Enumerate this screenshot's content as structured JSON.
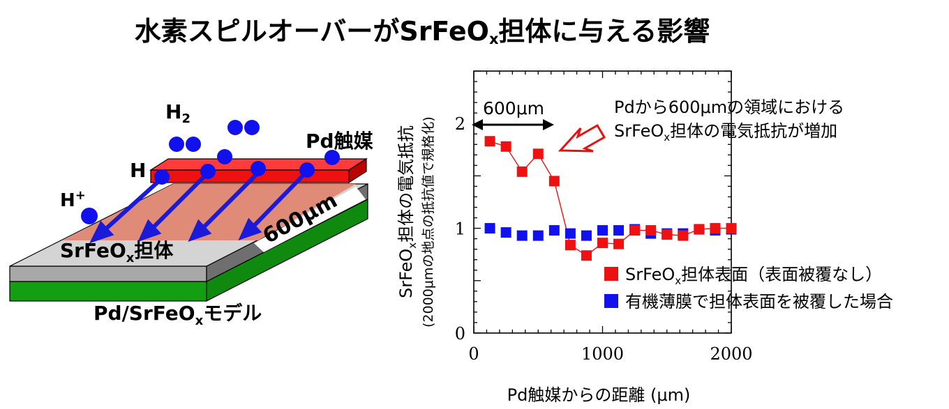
{
  "title": {
    "main": "水素スピルオーバーがSrFeO",
    "sub": "x",
    "tail": "担体に与える影響"
  },
  "diagram": {
    "h2_main": "H",
    "h2_sub": "2",
    "h_label": "H",
    "hplus_main": "H",
    "hplus_sup": "+",
    "catalyst_label": "Pd触媒",
    "support_main": "SrFeO",
    "support_sub": "x",
    "support_tail": "担体",
    "distance_label": "600μm",
    "model_main": "Pd/SrFeO",
    "model_sub": "x",
    "model_tail": "モデル"
  },
  "chart_data": {
    "type": "scatter",
    "xlabel": "Pd触媒からの距離 (μm)",
    "ylabel_main_a": "SrFeO",
    "ylabel_main_sub": "x",
    "ylabel_main_b": "担体の電気抵抗",
    "ylabel_sub": "(2000μmの地点の抵抗値で規格化)",
    "xlim": [
      0,
      2000
    ],
    "ylim": [
      0,
      2.5
    ],
    "xticks": [
      "0",
      "1000",
      "2000"
    ],
    "yticks": [
      "0",
      "1",
      "2"
    ],
    "span_label": "600μm",
    "annotation_line1": "Pdから600μmの領域における",
    "annotation_line2_a": "SrFeO",
    "annotation_line2_sub": "x",
    "annotation_line2_b": "担体の電気抵抗が増加",
    "series": [
      {
        "name_a": "SrFeO",
        "name_sub": "x",
        "name_b": "担体表面（表面被覆なし）",
        "color": "#ee1111",
        "x": [
          125,
          250,
          375,
          500,
          625,
          750,
          875,
          1000,
          1125,
          1250,
          1375,
          1500,
          1625,
          1750,
          1875,
          2000
        ],
        "y": [
          1.83,
          1.78,
          1.54,
          1.71,
          1.45,
          0.84,
          0.74,
          0.86,
          0.85,
          0.98,
          0.98,
          0.94,
          0.93,
          0.99,
          1.0,
          1.0
        ]
      },
      {
        "name": "有機薄膜で担体表面を被覆した場合",
        "color": "#1111ee",
        "x": [
          125,
          250,
          375,
          500,
          625,
          750,
          875,
          1000,
          1125,
          1250,
          1375,
          1500,
          1625,
          1750,
          1875,
          2000
        ],
        "y": [
          1.0,
          0.96,
          0.93,
          0.93,
          0.98,
          0.95,
          0.93,
          0.98,
          0.98,
          0.99,
          0.95,
          0.95,
          0.95,
          0.99,
          0.98,
          0.99
        ]
      }
    ]
  }
}
